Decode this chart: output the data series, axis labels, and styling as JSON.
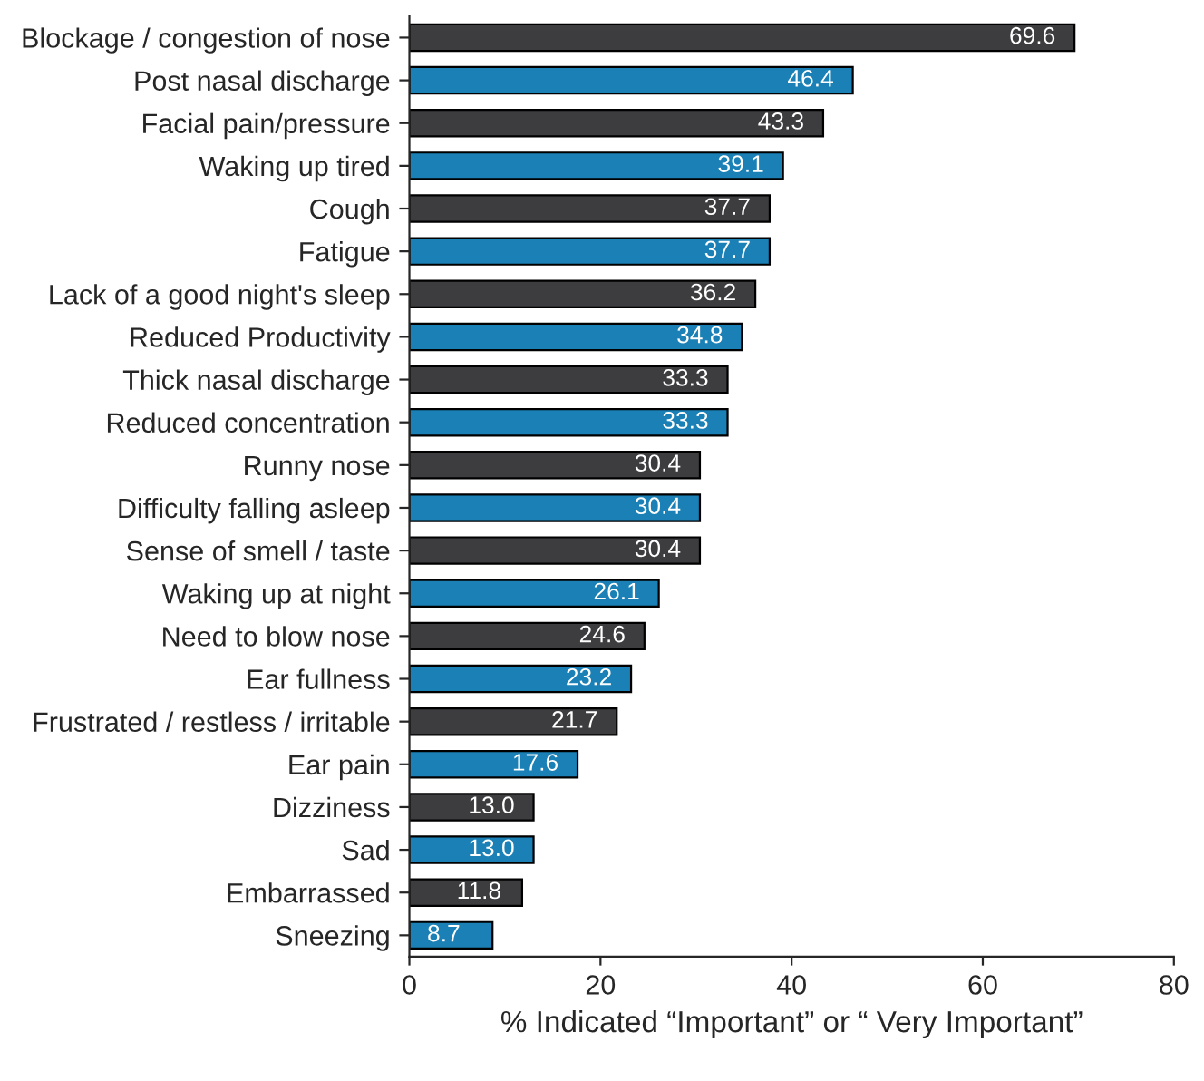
{
  "chart_data": {
    "type": "bar",
    "orientation": "horizontal",
    "categories": [
      "Blockage / congestion of nose",
      "Post nasal discharge",
      "Facial pain/pressure",
      "Waking up tired",
      "Cough",
      "Fatigue",
      "Lack of a good night's sleep",
      "Reduced Productivity",
      "Thick nasal discharge",
      "Reduced concentration",
      "Runny nose",
      "Difficulty falling asleep",
      "Sense of smell / taste",
      "Waking up at night",
      "Need to blow nose",
      "Ear fullness",
      "Frustrated / restless / irritable",
      "Ear pain",
      "Dizziness",
      "Sad",
      "Embarrassed",
      "Sneezing"
    ],
    "values": [
      69.6,
      46.4,
      43.3,
      39.1,
      37.7,
      37.7,
      36.2,
      34.8,
      33.3,
      33.3,
      30.4,
      30.4,
      30.4,
      26.1,
      24.6,
      23.2,
      21.7,
      17.6,
      13.0,
      13.0,
      11.8,
      8.7
    ],
    "value_labels": [
      "69.6",
      "46.4",
      "43.3",
      "39.1",
      "37.7",
      "37.7",
      "36.2",
      "34.8",
      "33.3",
      "33.3",
      "30.4",
      "30.4",
      "30.4",
      "26.1",
      "24.6",
      "23.2",
      "21.7",
      "17.6",
      "13.0",
      "13.0",
      "11.8",
      "8.7"
    ],
    "colors": [
      "#3d3d40",
      "#1a80b6",
      "#3d3d40",
      "#1a80b6",
      "#3d3d40",
      "#1a80b6",
      "#3d3d40",
      "#1a80b6",
      "#3d3d40",
      "#1a80b6",
      "#3d3d40",
      "#1a80b6",
      "#3d3d40",
      "#1a80b6",
      "#3d3d40",
      "#1a80b6",
      "#3d3d40",
      "#1a80b6",
      "#3d3d40",
      "#1a80b6",
      "#3d3d40",
      "#1a80b6"
    ],
    "xlabel": "% Indicated “Important” or “ Very Important”",
    "xlim": [
      0,
      80
    ],
    "xticks": [
      0,
      20,
      40,
      60,
      80
    ],
    "grid": false,
    "legend": false
  }
}
